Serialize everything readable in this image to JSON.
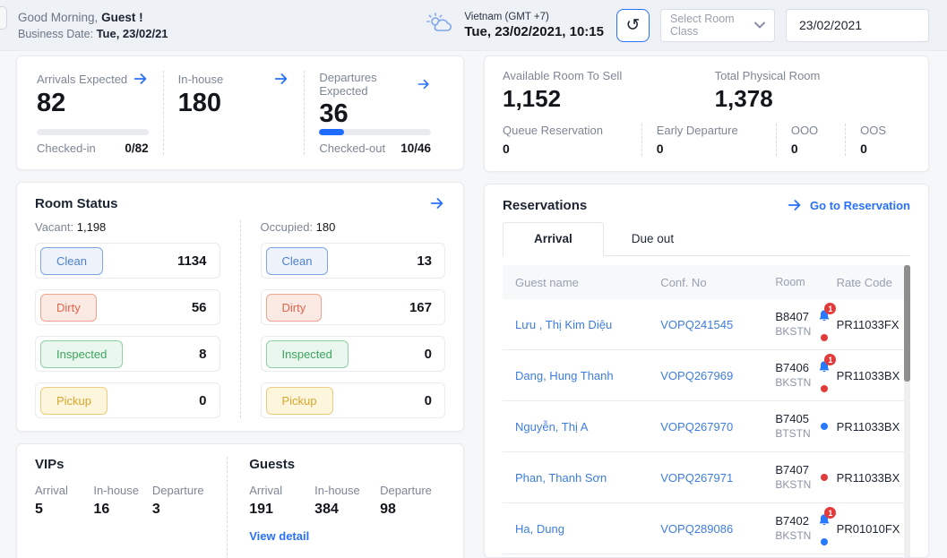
{
  "header": {
    "greeting_prefix": "Good Morning,",
    "greeting_name": "Guest !",
    "business_date_label": "Business Date:",
    "business_date": "Tue, 23/02/21",
    "timezone": "Vietnam (GMT +7)",
    "datetime": "Tue, 23/02/2021, 10:15",
    "room_class_placeholder": "Select Room Class",
    "date_value": "23/02/2021"
  },
  "stats": {
    "arrivals": {
      "label": "Arrivals Expected",
      "value": "82",
      "progress_label": "Checked-in",
      "progress_value": "0/82",
      "progress_pct": 0
    },
    "inhouse": {
      "label": "In-house",
      "value": "180"
    },
    "departures": {
      "label": "Departures Expected",
      "value": "36",
      "progress_label": "Checked-out",
      "progress_value": "10/46",
      "progress_pct": 22
    }
  },
  "availability": {
    "available_label": "Available Room To Sell",
    "available_value": "1,152",
    "total_label": "Total Physical Room",
    "total_value": "1,378",
    "items": [
      {
        "label": "Queue Reservation",
        "value": "0"
      },
      {
        "label": "Early Departure",
        "value": "0"
      },
      {
        "label": "OOO",
        "value": "0"
      },
      {
        "label": "OOS",
        "value": "0"
      }
    ]
  },
  "room_status": {
    "title": "Room Status",
    "vacant_label": "Vacant:",
    "vacant_value": "1,198",
    "occupied_label": "Occupied:",
    "occupied_value": "180",
    "statuses": [
      "Clean",
      "Dirty",
      "Inspected",
      "Pickup"
    ],
    "vacant_counts": [
      "1134",
      "56",
      "8",
      "0"
    ],
    "occupied_counts": [
      "13",
      "167",
      "0",
      "0"
    ]
  },
  "vips": {
    "title": "VIPs",
    "items": [
      {
        "label": "Arrival",
        "value": "5"
      },
      {
        "label": "In-house",
        "value": "16"
      },
      {
        "label": "Departure",
        "value": "3"
      }
    ]
  },
  "guests": {
    "title": "Guests",
    "items": [
      {
        "label": "Arrival",
        "value": "191"
      },
      {
        "label": "In-house",
        "value": "384"
      },
      {
        "label": "Departure",
        "value": "98"
      }
    ],
    "view_detail": "View detail"
  },
  "reservations": {
    "title": "Reservations",
    "go_to": "Go to Reservation",
    "tabs": [
      "Arrival",
      "Due out"
    ],
    "active_tab": "Arrival",
    "columns": [
      "Guest name",
      "Conf. No",
      "Room",
      "Rate Code"
    ],
    "rows": [
      {
        "guest": "Lưu , Thị Kim Diệu",
        "conf": "VOPQ241545",
        "room": "B8407",
        "room_type": "BKSTN",
        "rate": "PR11033FX",
        "badge": "1",
        "dot_color": "#e23b3b"
      },
      {
        "guest": "Dang, Hung Thanh",
        "conf": "VOPQ267969",
        "room": "B7406",
        "room_type": "BKSTN",
        "rate": "PR11033BX",
        "badge": "1",
        "dot_color": "#e23b3b"
      },
      {
        "guest": "Nguyễn, Thị A",
        "conf": "VOPQ267970",
        "room": "B7405",
        "room_type": "BTSTN",
        "rate": "PR11033BX",
        "dot_color": "#2979ff"
      },
      {
        "guest": "Phan, Thanh Sơn",
        "conf": "VOPQ267971",
        "room": "B7407",
        "room_type": "BKSTN",
        "rate": "PR11033BX",
        "dot_color": "#e23b3b"
      },
      {
        "guest": "Ha, Dung",
        "conf": "VOPQ289086",
        "room": "B7402",
        "room_type": "BKSTN",
        "rate": "PR01010FX",
        "badge": "1",
        "dot_color": "#2979ff"
      }
    ]
  },
  "colors": {
    "accent_blue": "#2970ff",
    "link_blue": "#3e7de0",
    "progress_blue": "#1f6bff",
    "bell_blue": "#2979ff",
    "alert_red": "#e23b3b",
    "clean_blue": "#4d7fd0",
    "dirty_red": "#e0654a",
    "inspected_green": "#3da55c",
    "pickup_amber": "#d7a72e"
  }
}
